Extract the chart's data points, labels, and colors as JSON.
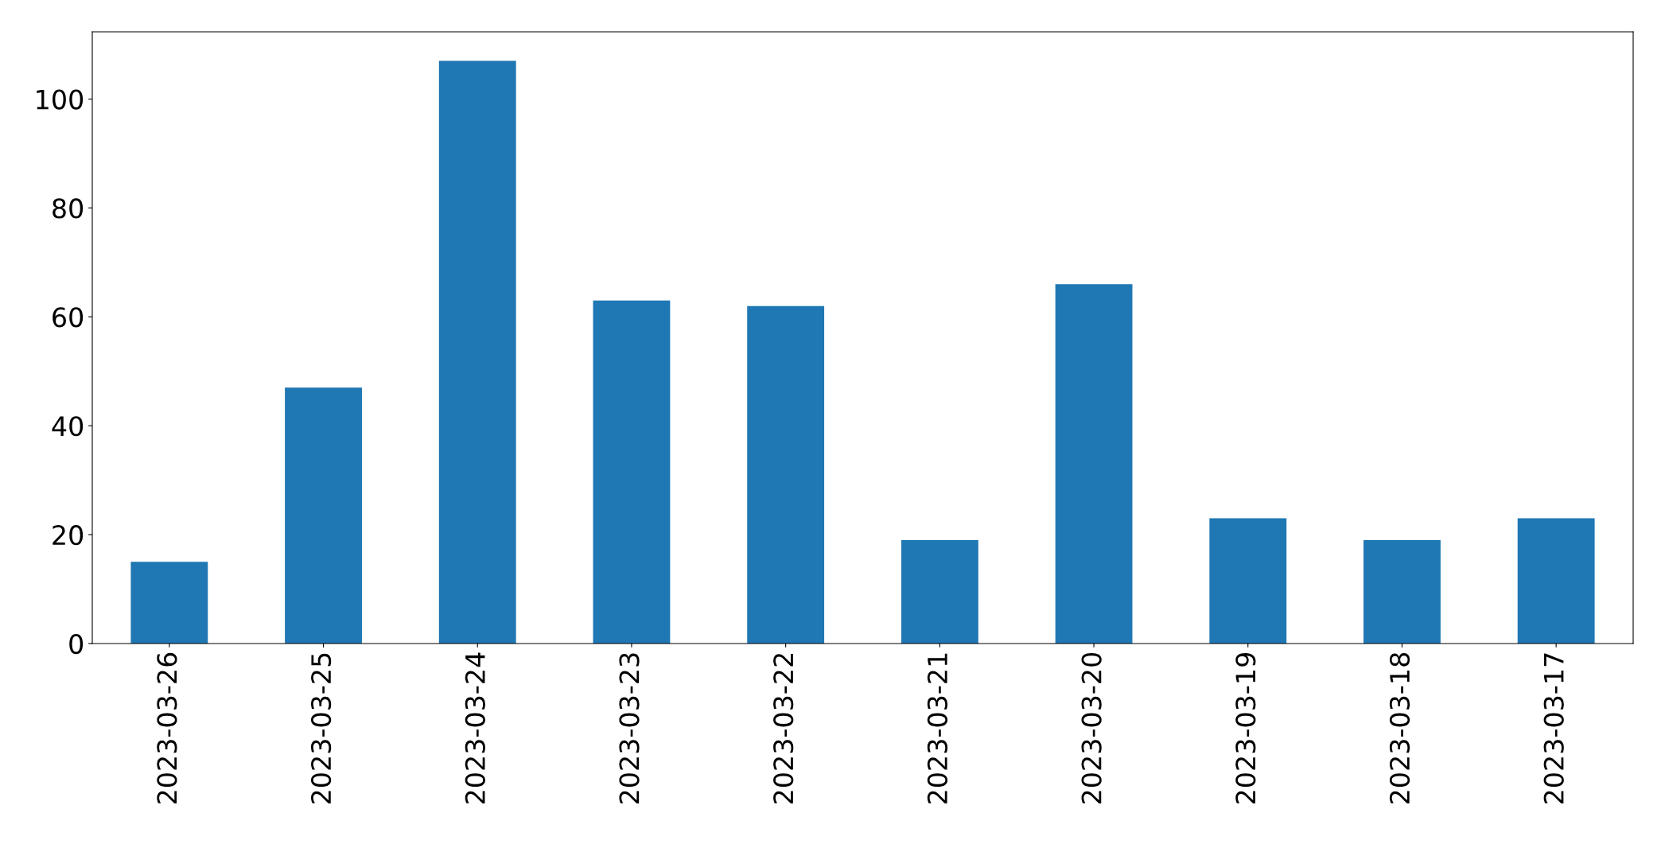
{
  "chart_data": {
    "type": "bar",
    "categories": [
      "2023-03-26",
      "2023-03-25",
      "2023-03-24",
      "2023-03-23",
      "2023-03-22",
      "2023-03-21",
      "2023-03-20",
      "2023-03-19",
      "2023-03-18",
      "2023-03-17"
    ],
    "values": [
      15,
      47,
      107,
      63,
      62,
      19,
      66,
      23,
      19,
      23
    ],
    "color": "#1f77b4",
    "ylim": [
      0,
      112.35
    ],
    "yticks": [
      0,
      20,
      40,
      60,
      80,
      100
    ],
    "grid": false,
    "legend": false
  }
}
